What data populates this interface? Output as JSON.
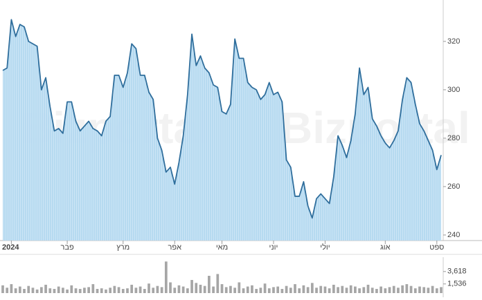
{
  "watermark": "Bizportal",
  "chart_data": [
    {
      "type": "area",
      "color": "#2f6e9c",
      "fill_color": "#b8dcf3",
      "categories": [
        null,
        null,
        "2024",
        null,
        null,
        null,
        null,
        null,
        null,
        null,
        null,
        null,
        null,
        null,
        null,
        "פבר",
        null,
        null,
        null,
        null,
        null,
        null,
        null,
        null,
        null,
        null,
        null,
        null,
        "מרץ",
        null,
        null,
        null,
        null,
        null,
        null,
        null,
        null,
        null,
        null,
        null,
        "אפר",
        null,
        null,
        null,
        null,
        null,
        null,
        null,
        null,
        null,
        null,
        "מאי",
        null,
        null,
        null,
        null,
        null,
        null,
        null,
        null,
        null,
        null,
        null,
        "יוני",
        null,
        null,
        null,
        null,
        null,
        null,
        null,
        null,
        null,
        null,
        null,
        "יולי",
        null,
        null,
        null,
        null,
        null,
        null,
        null,
        null,
        null,
        null,
        null,
        null,
        null,
        "אוג",
        null,
        null,
        null,
        null,
        null,
        null,
        null,
        null,
        null,
        null,
        null,
        "ספט",
        null
      ],
      "values": [
        308,
        309,
        329,
        322,
        327,
        326,
        320,
        319,
        318,
        300,
        305,
        293,
        283,
        284,
        282,
        295,
        295,
        287,
        283,
        285,
        287,
        284,
        283,
        281,
        287,
        289,
        306,
        306,
        301,
        307,
        319,
        317,
        306,
        306,
        299,
        296,
        280,
        275,
        266,
        268,
        261,
        270,
        281,
        298,
        323,
        310,
        314,
        309,
        307,
        302,
        301,
        291,
        290,
        294,
        321,
        313,
        313,
        303,
        301,
        300,
        296,
        298,
        303,
        298,
        299,
        295,
        271,
        268,
        256,
        256,
        262,
        252,
        247,
        255,
        257,
        255,
        253,
        264,
        281,
        277,
        272,
        279,
        290,
        309,
        298,
        301,
        288,
        285,
        281,
        278,
        276,
        279,
        283,
        296,
        305,
        303,
        294,
        286,
        283,
        279,
        275,
        267,
        273
      ],
      "ylim": [
        237.7,
        337.1
      ],
      "yticks": [
        240,
        260,
        280,
        300,
        320
      ]
    },
    {
      "type": "bar",
      "color": "#a6a6a6",
      "values": [
        1300,
        900,
        1500,
        800,
        1100,
        700,
        1200,
        900,
        600,
        1000,
        1400,
        800,
        700,
        1100,
        900,
        600,
        1300,
        800,
        700,
        900,
        1000,
        1500,
        700,
        800,
        600,
        900,
        1200,
        1000,
        700,
        800,
        1400,
        900,
        1100,
        700,
        1600,
        900,
        1200,
        1000,
        5300,
        1800,
        900,
        1300,
        1100,
        800,
        2200,
        1700,
        1400,
        1200,
        2900,
        1100,
        3200,
        1500,
        1000,
        1200,
        900,
        1800,
        800,
        1100,
        1300,
        700,
        900,
        1600,
        800,
        1000,
        1100,
        700,
        1200,
        900,
        1500,
        800,
        1300,
        1000,
        1700,
        900,
        1200,
        1100,
        800,
        1400,
        1000,
        1200,
        900,
        1300,
        1100,
        800,
        1000,
        1400,
        900,
        700,
        1100,
        800,
        1000,
        1200,
        900,
        1300,
        1500,
        1200,
        800,
        1100,
        1000,
        900,
        1200,
        800,
        1000
      ],
      "ylim": [
        0,
        5800
      ],
      "yticks": [
        {
          "value": 1536,
          "label": "1,536"
        },
        {
          "value": 3618,
          "label": "3,618"
        }
      ]
    }
  ]
}
